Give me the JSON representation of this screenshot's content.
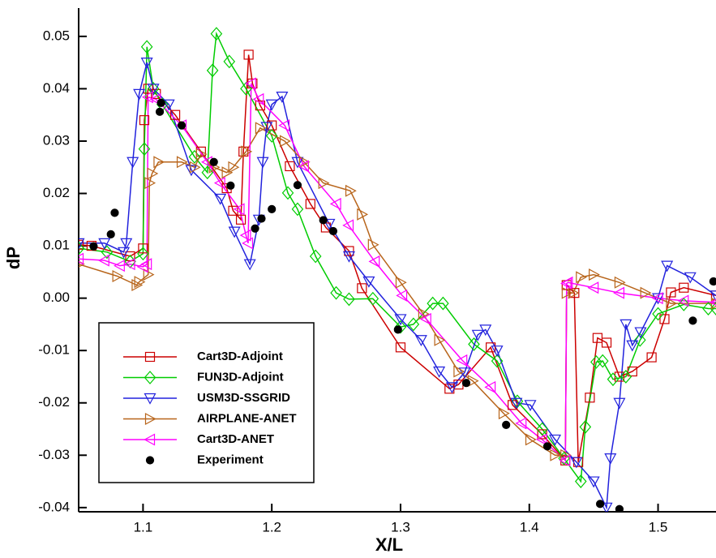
{
  "chart_data": {
    "type": "line",
    "xlabel": "X/L",
    "ylabel": "dP",
    "xlim": [
      1.05,
      1.545
    ],
    "ylim": [
      -0.0408,
      0.0554
    ],
    "xticks": [
      1.1,
      1.2,
      1.3,
      1.4,
      1.5
    ],
    "yticks": [
      -0.04,
      -0.03,
      -0.02,
      -0.01,
      {
        "value": 0,
        "label": "0.00"
      },
      0.01,
      0.02,
      0.03,
      0.04,
      0.05
    ],
    "legend": "lower left",
    "series": [
      {
        "name": "Cart3D-Adjoint",
        "color": "#cc0000",
        "marker": "square",
        "line": true,
        "x": [
          1.05,
          1.06,
          1.09,
          1.1,
          1.101,
          1.104,
          1.11,
          1.125,
          1.145,
          1.165,
          1.17,
          1.176,
          1.178,
          1.182,
          1.185,
          1.191,
          1.2,
          1.214,
          1.23,
          1.242,
          1.26,
          1.27,
          1.3,
          1.338,
          1.345,
          1.37,
          1.387,
          1.41,
          1.428,
          1.429,
          1.435,
          1.438,
          1.447,
          1.453,
          1.46,
          1.47,
          1.48,
          1.495,
          1.505,
          1.51,
          1.52,
          1.545
        ],
        "values": [
          0.0102,
          0.01,
          0.008,
          0.0095,
          0.034,
          0.04,
          0.039,
          0.035,
          0.028,
          0.021,
          0.0167,
          0.015,
          0.028,
          0.0465,
          0.041,
          0.0368,
          0.033,
          0.0252,
          0.018,
          0.0135,
          0.009,
          0.0019,
          -0.0094,
          -0.0173,
          -0.0165,
          -0.0094,
          -0.0204,
          -0.026,
          -0.031,
          0.0025,
          0.001,
          -0.0313,
          -0.019,
          -0.0076,
          -0.0085,
          -0.015,
          -0.014,
          -0.0113,
          -0.004,
          0.0011,
          0.002,
          0.0005
        ]
      },
      {
        "name": "FUN3D-Adjoint",
        "color": "#00cc00",
        "marker": "diamond",
        "line": true,
        "x": [
          1.05,
          1.072,
          1.09,
          1.1,
          1.101,
          1.103,
          1.108,
          1.115,
          1.14,
          1.15,
          1.154,
          1.157,
          1.167,
          1.18,
          1.2,
          1.2125,
          1.22,
          1.234,
          1.25,
          1.26,
          1.2785,
          1.3,
          1.31,
          1.325,
          1.333,
          1.357,
          1.375,
          1.3907,
          1.41,
          1.427,
          1.44,
          1.4435,
          1.452,
          1.457,
          1.465,
          1.475,
          1.486,
          1.5,
          1.52,
          1.539,
          1.545
        ],
        "values": [
          0.0095,
          0.0088,
          0.007,
          0.0085,
          0.0285,
          0.048,
          0.04,
          0.037,
          0.027,
          0.024,
          0.0435,
          0.0505,
          0.0452,
          0.04,
          0.031,
          0.0201,
          0.017,
          0.008,
          0.001,
          -0.0002,
          -0.0001,
          -0.0055,
          -0.005,
          -0.001,
          -0.001,
          -0.0088,
          -0.012,
          -0.0197,
          -0.025,
          -0.0306,
          -0.035,
          -0.0246,
          -0.0122,
          -0.012,
          -0.0155,
          -0.015,
          -0.008,
          -0.003,
          -0.0012,
          -0.002,
          -0.002
        ]
      },
      {
        "name": "USM3D-SSGRID",
        "color": "#2222dd",
        "marker": "triangle-down",
        "line": true,
        "x": [
          1.05,
          1.07,
          1.085,
          1.087,
          1.092,
          1.097,
          1.103,
          1.108,
          1.12,
          1.1375,
          1.16,
          1.171,
          1.183,
          1.19,
          1.193,
          1.196,
          1.2,
          1.208,
          1.22,
          1.2446,
          1.26,
          1.2754,
          1.3,
          1.316,
          1.33,
          1.34,
          1.3498,
          1.36,
          1.366,
          1.375,
          1.39,
          1.4008,
          1.42,
          1.4366,
          1.45,
          1.46,
          1.463,
          1.47,
          1.475,
          1.48,
          1.4864,
          1.5,
          1.507,
          1.525,
          1.545
        ],
        "values": [
          0.0105,
          0.0105,
          0.0088,
          0.0105,
          0.026,
          0.039,
          0.045,
          0.04,
          0.037,
          0.0245,
          0.019,
          0.0127,
          0.0065,
          0.015,
          0.026,
          0.0327,
          0.037,
          0.0385,
          0.026,
          0.0142,
          0.008,
          0.0032,
          -0.004,
          -0.008,
          -0.014,
          -0.017,
          -0.0142,
          -0.007,
          -0.006,
          -0.01,
          -0.02,
          -0.0204,
          -0.027,
          -0.0313,
          -0.035,
          -0.04,
          -0.0306,
          -0.02,
          -0.005,
          -0.009,
          -0.0065,
          0,
          0.0062,
          0.004,
          0.0005
        ]
      },
      {
        "name": "AIRPLANE-ANET",
        "color": "#b8651b",
        "marker": "triangle-right",
        "line": true,
        "x": [
          1.05,
          1.08,
          1.095,
          1.097,
          1.104,
          1.105,
          1.107,
          1.112,
          1.13,
          1.14,
          1.145,
          1.155,
          1.165,
          1.17,
          1.18,
          1.191,
          1.21,
          1.225,
          1.24,
          1.261,
          1.27,
          1.2785,
          1.3,
          1.3176,
          1.33,
          1.345,
          1.356,
          1.38,
          1.4008,
          1.42,
          1.428,
          1.429,
          1.434,
          1.44,
          1.45,
          1.47,
          1.49,
          1.51,
          1.545
        ],
        "values": [
          0.0065,
          0.0042,
          0.0025,
          0.0031,
          0.0045,
          0.022,
          0.0238,
          0.026,
          0.026,
          0.025,
          0.0275,
          0.025,
          0.024,
          0.025,
          0.028,
          0.0325,
          0.03,
          0.026,
          0.022,
          0.0205,
          0.016,
          0.0102,
          0.003,
          -0.003,
          -0.008,
          -0.014,
          -0.0158,
          -0.022,
          -0.027,
          -0.03,
          -0.03,
          0.001,
          0.001,
          0.004,
          0.0045,
          0.003,
          0.001,
          -0.001,
          -0.001
        ]
      },
      {
        "name": "Cart3D-ANET",
        "color": "#ff00ff",
        "marker": "triangle-left",
        "line": true,
        "x": [
          1.05,
          1.07,
          1.082,
          1.09,
          1.1,
          1.103,
          1.104,
          1.11,
          1.13,
          1.15,
          1.16,
          1.175,
          1.18,
          1.1816,
          1.184,
          1.19,
          1.21,
          1.225,
          1.25,
          1.2597,
          1.28,
          1.3013,
          1.32,
          1.348,
          1.37,
          1.394,
          1.41,
          1.428,
          1.429,
          1.43,
          1.45,
          1.47,
          1.5,
          1.52,
          1.545
        ],
        "values": [
          0.0075,
          0.0072,
          0.0062,
          0.0065,
          0.006,
          0.0065,
          0.0384,
          0.038,
          0.033,
          0.026,
          0.022,
          0.017,
          0.012,
          0.0105,
          0.041,
          0.038,
          0.033,
          0.0252,
          0.018,
          0.0139,
          0.007,
          0.0005,
          -0.004,
          -0.0119,
          -0.017,
          -0.0239,
          -0.027,
          -0.031,
          0.0028,
          0.003,
          0.002,
          0.001,
          0,
          -0.0005,
          -0.0008
        ]
      },
      {
        "name": "Experiment",
        "color": "#000000",
        "marker": "circle",
        "line": false,
        "x": [
          1.0616,
          1.075,
          1.078,
          1.113,
          1.114,
          1.13,
          1.155,
          1.168,
          1.187,
          1.192,
          1.2,
          1.22,
          1.24,
          1.2477,
          1.298,
          1.351,
          1.382,
          1.414,
          1.455,
          1.47,
          1.527,
          1.543
        ],
        "values": [
          0.0099,
          0.0122,
          0.0163,
          0.0356,
          0.0373,
          0.033,
          0.026,
          0.0215,
          0.0133,
          0.0152,
          0.017,
          0.0216,
          0.0149,
          0.0128,
          -0.006,
          -0.0162,
          -0.0242,
          -0.0283,
          -0.0393,
          -0.0403,
          -0.0043,
          0.0032
        ]
      }
    ]
  }
}
